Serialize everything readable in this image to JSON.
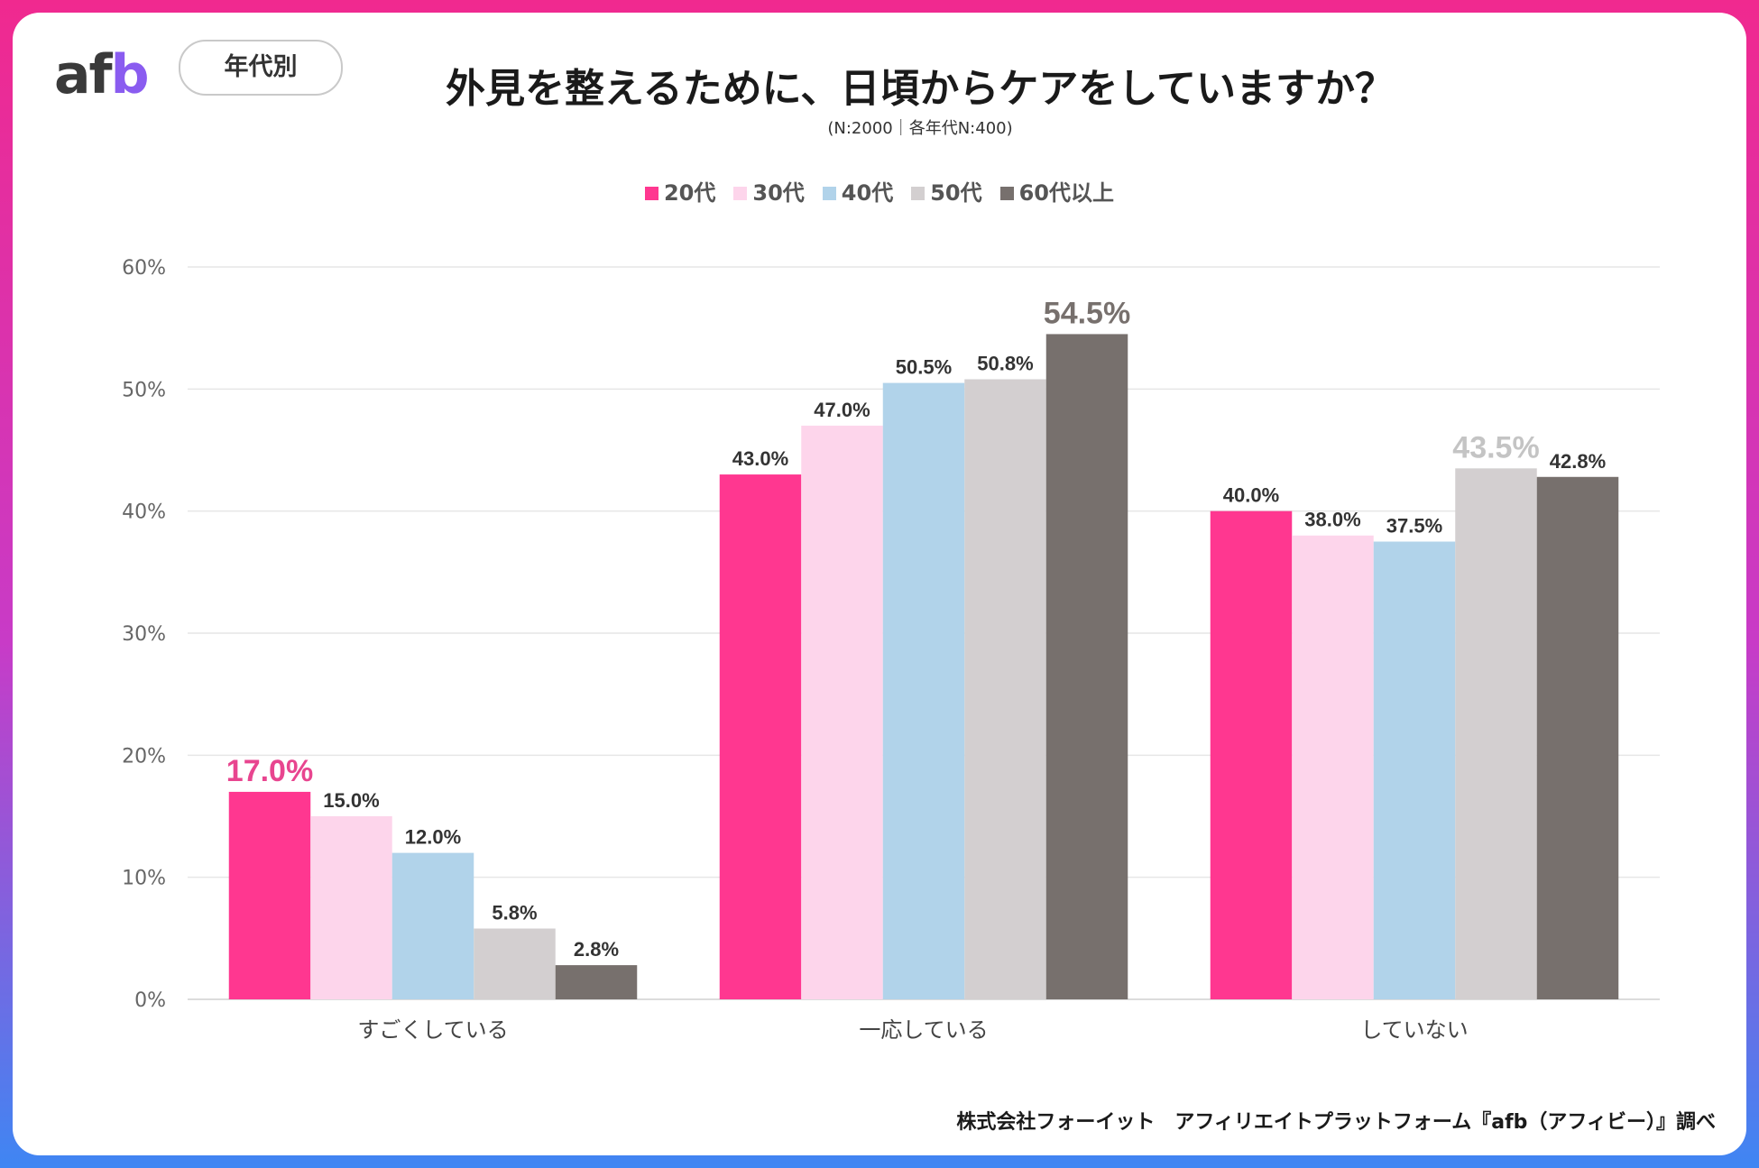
{
  "brand": {
    "logo_text": "afb"
  },
  "header": {
    "badge": "年代別",
    "title": "外見を整えるために、日頃からケアをしていますか？",
    "subtitle": "(N:2000｜各年代N:400)"
  },
  "footer": {
    "source": "株式会社フォーイット　アフィリエイトプラットフォーム『afb（アフィビー）』調べ"
  },
  "colors": {
    "frame_top": "#f0298f",
    "frame_bottom": "#3f86f3",
    "highlight_pink": "#e8458f",
    "highlight_gray": "#c4c4c4"
  },
  "chart_data": {
    "type": "bar",
    "title": "外見を整えるために、日頃からケアをしていますか？",
    "xlabel": "",
    "ylabel": "",
    "ylim": [
      0,
      60
    ],
    "yticks": [
      0,
      10,
      20,
      30,
      40,
      50,
      60
    ],
    "ytick_labels": [
      "0%",
      "10%",
      "20%",
      "30%",
      "40%",
      "50%",
      "60%"
    ],
    "grid": true,
    "legend_position": "top-center",
    "categories": [
      "すごくしている",
      "一応している",
      "していない"
    ],
    "series": [
      {
        "name": "20代",
        "color": "#ff3790",
        "values": [
          17.0,
          43.0,
          40.0
        ],
        "labels": [
          "17.0%",
          "43.0%",
          "40.0%"
        ]
      },
      {
        "name": "30代",
        "color": "#fdd5eb",
        "values": [
          15.0,
          47.0,
          38.0
        ],
        "labels": [
          "15.0%",
          "47.0%",
          "38.0%"
        ]
      },
      {
        "name": "40代",
        "color": "#b1d3ea",
        "values": [
          12.0,
          50.5,
          37.5
        ],
        "labels": [
          "12.0%",
          "50.5%",
          "37.5%"
        ]
      },
      {
        "name": "50代",
        "color": "#d3cfd0",
        "values": [
          5.8,
          50.8,
          43.5
        ],
        "labels": [
          "5.8%",
          "50.8%",
          "43.5%"
        ]
      },
      {
        "name": "60代以上",
        "color": "#77706d",
        "values": [
          2.8,
          54.5,
          42.8
        ],
        "labels": [
          "2.8%",
          "54.5%",
          "42.8%"
        ]
      }
    ],
    "highlights": [
      {
        "series": 0,
        "category": 0,
        "color": "#e8458f"
      },
      {
        "series": 4,
        "category": 1,
        "color": "#77706d"
      },
      {
        "series": 3,
        "category": 2,
        "color": "#c4c4c4"
      }
    ]
  }
}
